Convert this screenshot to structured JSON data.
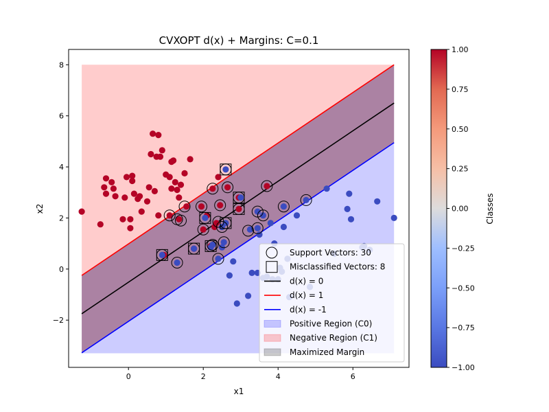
{
  "chart_data": {
    "type": "scatter",
    "title": "CVXOPT d(x) + Margins: C=0.1",
    "xlabel": "x1",
    "ylabel": "x2",
    "xlim": [
      -1.6,
      7.5
    ],
    "ylim": [
      -3.85,
      8.6
    ],
    "xticks": [
      0,
      2,
      4,
      6
    ],
    "yticks": [
      -2,
      0,
      2,
      4,
      6,
      8
    ],
    "tick_labels_x": [
      "0",
      "2",
      "4",
      "6"
    ],
    "tick_labels_y": [
      "−2",
      "0",
      "2",
      "4",
      "6",
      "8"
    ],
    "grid": false,
    "colorbar": {
      "label": "Classes",
      "range": [
        -1.0,
        1.0
      ],
      "ticks": [
        1.0,
        0.75,
        0.5,
        0.25,
        0.0,
        -0.25,
        -0.5,
        -0.75,
        -1.0
      ],
      "tick_labels": [
        "1.00",
        "0.75",
        "0.50",
        "0.25",
        "0.00",
        "−0.25",
        "−0.50",
        "−0.75",
        "−1.00"
      ],
      "colormap": "coolwarm"
    },
    "region_x_range": [
      -1.25,
      7.1
    ],
    "region_y_range": [
      -3.3,
      8.0
    ],
    "lines": [
      {
        "name": "d(x) = 0",
        "color": "#000000",
        "x": [
          -1.25,
          7.1
        ],
        "y": [
          -1.75,
          6.5
        ]
      },
      {
        "name": "d(x) = 1",
        "color": "#ff0000",
        "x": [
          -1.25,
          7.1
        ],
        "y": [
          -0.25,
          8.0
        ]
      },
      {
        "name": "d(x) = -1",
        "color": "#0000ff",
        "x": [
          -1.25,
          7.1
        ],
        "y": [
          -3.28,
          4.95
        ]
      }
    ],
    "regions": [
      {
        "name": "Positive Region (C0)",
        "color": "#0000ff",
        "opacity": 0.2
      },
      {
        "name": "Negative Region (C1)",
        "color": "#ff0000",
        "opacity": 0.2
      },
      {
        "name": "Maximized Margin",
        "color": "#000000",
        "opacity": 0.2
      }
    ],
    "series": [
      {
        "name": "Class 1",
        "color": "#b40426",
        "points": [
          [
            -1.25,
            2.25
          ],
          [
            -0.75,
            1.75
          ],
          [
            -0.65,
            3.2
          ],
          [
            -0.6,
            3.55
          ],
          [
            -0.6,
            2.95
          ],
          [
            -0.45,
            3.4
          ],
          [
            -0.4,
            3.15
          ],
          [
            -0.35,
            2.85
          ],
          [
            -0.15,
            1.95
          ],
          [
            -0.1,
            2.8
          ],
          [
            -0.05,
            3.6
          ],
          [
            0.05,
            1.6
          ],
          [
            0.05,
            1.95
          ],
          [
            0.1,
            3.65
          ],
          [
            0.1,
            3.45
          ],
          [
            0.15,
            2.95
          ],
          [
            0.25,
            2.75
          ],
          [
            0.3,
            2.85
          ],
          [
            0.35,
            2.25
          ],
          [
            0.5,
            2.65
          ],
          [
            0.55,
            3.2
          ],
          [
            0.6,
            4.5
          ],
          [
            0.65,
            5.3
          ],
          [
            0.7,
            3.05
          ],
          [
            0.75,
            4.4
          ],
          [
            0.8,
            5.25
          ],
          [
            0.8,
            2.1
          ],
          [
            0.85,
            4.4
          ],
          [
            0.9,
            4.65
          ],
          [
            0.95,
            0.55
          ],
          [
            1.0,
            3.7
          ],
          [
            1.1,
            3.6
          ],
          [
            1.1,
            2.1
          ],
          [
            1.15,
            3.15
          ],
          [
            1.15,
            4.2
          ],
          [
            1.2,
            4.25
          ],
          [
            1.25,
            3.4
          ],
          [
            1.3,
            3.1
          ],
          [
            1.35,
            1.95
          ],
          [
            1.35,
            2.8
          ],
          [
            1.4,
            3.3
          ],
          [
            1.5,
            3.75
          ],
          [
            1.55,
            2.45
          ],
          [
            1.65,
            4.3
          ],
          [
            1.75,
            0.8
          ],
          [
            1.95,
            2.45
          ],
          [
            2.0,
            1.55
          ],
          [
            2.1,
            2.1
          ],
          [
            2.2,
            0.9
          ],
          [
            2.25,
            3.15
          ],
          [
            2.3,
            1.65
          ],
          [
            2.35,
            1.8
          ],
          [
            2.4,
            3.6
          ],
          [
            2.45,
            2.5
          ],
          [
            2.65,
            3.2
          ],
          [
            2.95,
            2.8
          ],
          [
            2.95,
            2.35
          ],
          [
            3.7,
            3.25
          ]
        ]
      },
      {
        "name": "Class -1",
        "color": "#3b4cc0",
        "points": [
          [
            0.9,
            0.55
          ],
          [
            1.3,
            0.25
          ],
          [
            1.75,
            0.8
          ],
          [
            2.05,
            2.0
          ],
          [
            2.2,
            0.85
          ],
          [
            2.25,
            0.95
          ],
          [
            2.4,
            0.4
          ],
          [
            2.5,
            1.65
          ],
          [
            2.5,
            0.85
          ],
          [
            2.55,
            1.05
          ],
          [
            2.6,
            1.8
          ],
          [
            2.6,
            3.9
          ],
          [
            2.7,
            -0.25
          ],
          [
            2.8,
            0.3
          ],
          [
            2.9,
            -1.35
          ],
          [
            3.0,
            2.8
          ],
          [
            3.2,
            -1.05
          ],
          [
            3.25,
            1.55
          ],
          [
            3.3,
            -0.15
          ],
          [
            3.45,
            -0.15
          ],
          [
            3.45,
            2.25
          ],
          [
            3.45,
            1.6
          ],
          [
            3.5,
            1.35
          ],
          [
            3.6,
            2.1
          ],
          [
            3.6,
            -0.35
          ],
          [
            3.7,
            -0.3
          ],
          [
            3.8,
            1.8
          ],
          [
            3.85,
            -0.4
          ],
          [
            3.9,
            1.0
          ],
          [
            4.0,
            -0.4
          ],
          [
            4.05,
            0.05
          ],
          [
            4.1,
            -0.1
          ],
          [
            4.15,
            2.45
          ],
          [
            4.15,
            1.65
          ],
          [
            4.25,
            0.4
          ],
          [
            4.3,
            -1.1
          ],
          [
            4.5,
            2.1
          ],
          [
            4.75,
            2.7
          ],
          [
            4.85,
            -0.7
          ],
          [
            5.3,
            3.15
          ],
          [
            5.5,
            0.6
          ],
          [
            5.85,
            2.35
          ],
          [
            5.9,
            2.95
          ],
          [
            5.95,
            1.95
          ],
          [
            6.25,
            0.85
          ],
          [
            6.3,
            0.9
          ],
          [
            6.45,
            0.75
          ],
          [
            6.65,
            2.65
          ],
          [
            7.1,
            2.0
          ]
        ]
      }
    ],
    "support_vectors": [
      [
        0.9,
        0.55
      ],
      [
        1.1,
        2.1
      ],
      [
        1.3,
        0.25
      ],
      [
        1.3,
        1.95
      ],
      [
        1.4,
        1.9
      ],
      [
        1.5,
        2.45
      ],
      [
        1.75,
        0.8
      ],
      [
        1.95,
        2.45
      ],
      [
        2.0,
        1.55
      ],
      [
        2.05,
        2.0
      ],
      [
        2.25,
        3.15
      ],
      [
        2.25,
        0.95
      ],
      [
        2.4,
        0.4
      ],
      [
        2.45,
        2.5
      ],
      [
        2.4,
        1.85
      ],
      [
        2.5,
        1.65
      ],
      [
        2.55,
        1.05
      ],
      [
        2.6,
        1.8
      ],
      [
        2.6,
        3.9
      ],
      [
        2.65,
        3.2
      ],
      [
        2.95,
        2.8
      ],
      [
        2.95,
        2.35
      ],
      [
        3.2,
        1.5
      ],
      [
        3.45,
        2.25
      ],
      [
        3.45,
        1.6
      ],
      [
        3.6,
        2.1
      ],
      [
        3.7,
        3.25
      ],
      [
        4.15,
        2.45
      ],
      [
        4.75,
        2.7
      ],
      [
        2.2,
        0.9
      ]
    ],
    "misclassified_vectors": [
      [
        0.9,
        0.55
      ],
      [
        1.75,
        0.8
      ],
      [
        2.05,
        2.0
      ],
      [
        2.2,
        0.9
      ],
      [
        2.6,
        1.8
      ],
      [
        2.6,
        3.9
      ],
      [
        2.95,
        2.8
      ],
      [
        2.95,
        2.35
      ]
    ],
    "legend": {
      "placement": "lower-right",
      "entries": [
        {
          "label": "Support Vectors: 30",
          "marker": "circle"
        },
        {
          "label": "Misclassified Vectors: 8",
          "marker": "square"
        },
        {
          "label": "d(x) = 0",
          "marker": "line",
          "color": "#000000"
        },
        {
          "label": "d(x) = 1",
          "marker": "line",
          "color": "#ff0000"
        },
        {
          "label": "d(x) = -1",
          "marker": "line",
          "color": "#0000ff"
        },
        {
          "label": "Positive Region (C0)",
          "marker": "patch",
          "color": "#0000ff"
        },
        {
          "label": "Negative Region (C1)",
          "marker": "patch",
          "color": "#ff0000"
        },
        {
          "label": "Maximized Margin",
          "marker": "patch",
          "color": "#000000"
        }
      ]
    }
  }
}
